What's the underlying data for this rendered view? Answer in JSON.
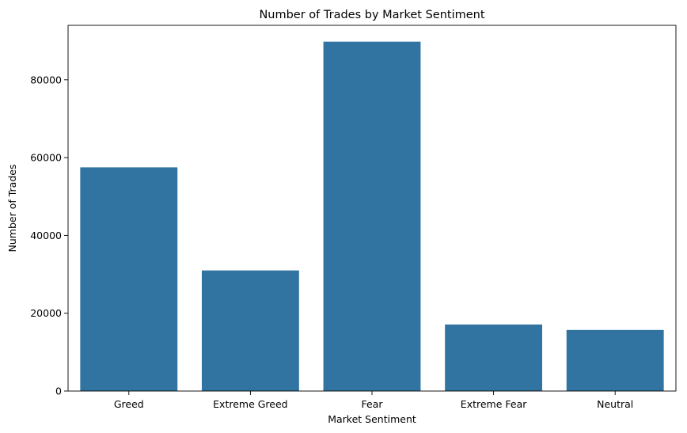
{
  "chart_data": {
    "type": "bar",
    "title": "Number of Trades by Market Sentiment",
    "xlabel": "Market Sentiment",
    "ylabel": "Number of Trades",
    "categories": [
      "Greed",
      "Extreme Greed",
      "Fear",
      "Extreme Fear",
      "Neutral"
    ],
    "values": [
      57500,
      31000,
      89800,
      17100,
      15700
    ],
    "ylim": [
      0,
      94000
    ],
    "yticks": [
      0,
      20000,
      40000,
      60000,
      80000
    ],
    "ytick_labels": [
      "0",
      "20000",
      "40000",
      "60000",
      "80000"
    ],
    "grid": false,
    "legend": "none",
    "bar_color": "#3274a1"
  }
}
